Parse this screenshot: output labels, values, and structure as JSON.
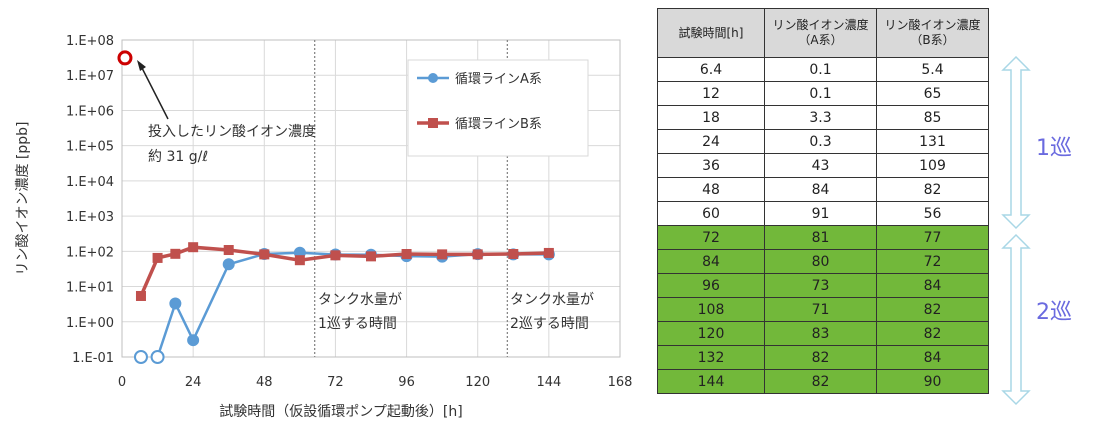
{
  "chart_data": {
    "type": "scatter",
    "xlabel": "試験時間（仮設循環ポンプ起動後）[h]",
    "ylabel": "リン酸イオン濃度 [ppb]",
    "xlim": [
      0,
      168
    ],
    "ylim": [
      0.1,
      100000000
    ],
    "yscale": "log",
    "xticks": [
      "0",
      "24",
      "48",
      "72",
      "96",
      "120",
      "144",
      "168"
    ],
    "yticks": [
      "1.E-01",
      "1.E+00",
      "1.E+01",
      "1.E+02",
      "1.E+03",
      "1.E+04",
      "1.E+05",
      "1.E+06",
      "1.E+07",
      "1.E+08"
    ],
    "grid": true,
    "legend": "top-right",
    "series": [
      {
        "name": "循環ラインA系",
        "color": "#5b9bd5",
        "marker": "circle",
        "x": [
          6.4,
          12,
          18,
          24,
          36,
          48,
          60,
          72,
          84,
          96,
          108,
          120,
          132,
          144
        ],
        "y": [
          0.1,
          0.1,
          3.3,
          0.3,
          43,
          84,
          91,
          81,
          80,
          73,
          71,
          83,
          82,
          82
        ]
      },
      {
        "name": "循環ラインB系",
        "color": "#c0504d",
        "marker": "square",
        "x": [
          6.4,
          12,
          18,
          24,
          36,
          48,
          60,
          72,
          84,
          96,
          108,
          120,
          132,
          144
        ],
        "y": [
          5.4,
          65,
          85,
          131,
          109,
          82,
          56,
          77,
          72,
          84,
          82,
          82,
          84,
          90
        ]
      }
    ],
    "injection_point": {
      "x": 1,
      "y": 31000000,
      "color": "#cc0000"
    },
    "vlines": [
      {
        "x": 65
      },
      {
        "x": 130
      }
    ],
    "annotations": [
      "投入したリン酸イオン濃度",
      "約 31 g/ℓ",
      "タンク水量が",
      "1巡する時間",
      "タンク水量が",
      "2巡する時間"
    ]
  },
  "table": {
    "headers": [
      "試験時間[h]",
      "リン酸イオン濃度（A系）",
      "リン酸イオン濃度（B系）"
    ],
    "rows": [
      [
        "6.4",
        "0.1",
        "5.4"
      ],
      [
        "12",
        "0.1",
        "65"
      ],
      [
        "18",
        "3.3",
        "85"
      ],
      [
        "24",
        "0.3",
        "131"
      ],
      [
        "36",
        "43",
        "109"
      ],
      [
        "48",
        "84",
        "82"
      ],
      [
        "60",
        "91",
        "56"
      ],
      [
        "72",
        "81",
        "77"
      ],
      [
        "84",
        "80",
        "72"
      ],
      [
        "96",
        "73",
        "84"
      ],
      [
        "108",
        "71",
        "82"
      ],
      [
        "120",
        "83",
        "82"
      ],
      [
        "132",
        "82",
        "84"
      ],
      [
        "144",
        "82",
        "90"
      ]
    ],
    "cycle1_label": "1巡",
    "cycle2_label": "2巡",
    "cycle2_color": "#72b83a",
    "arrow_color": "#a9d7e6"
  }
}
